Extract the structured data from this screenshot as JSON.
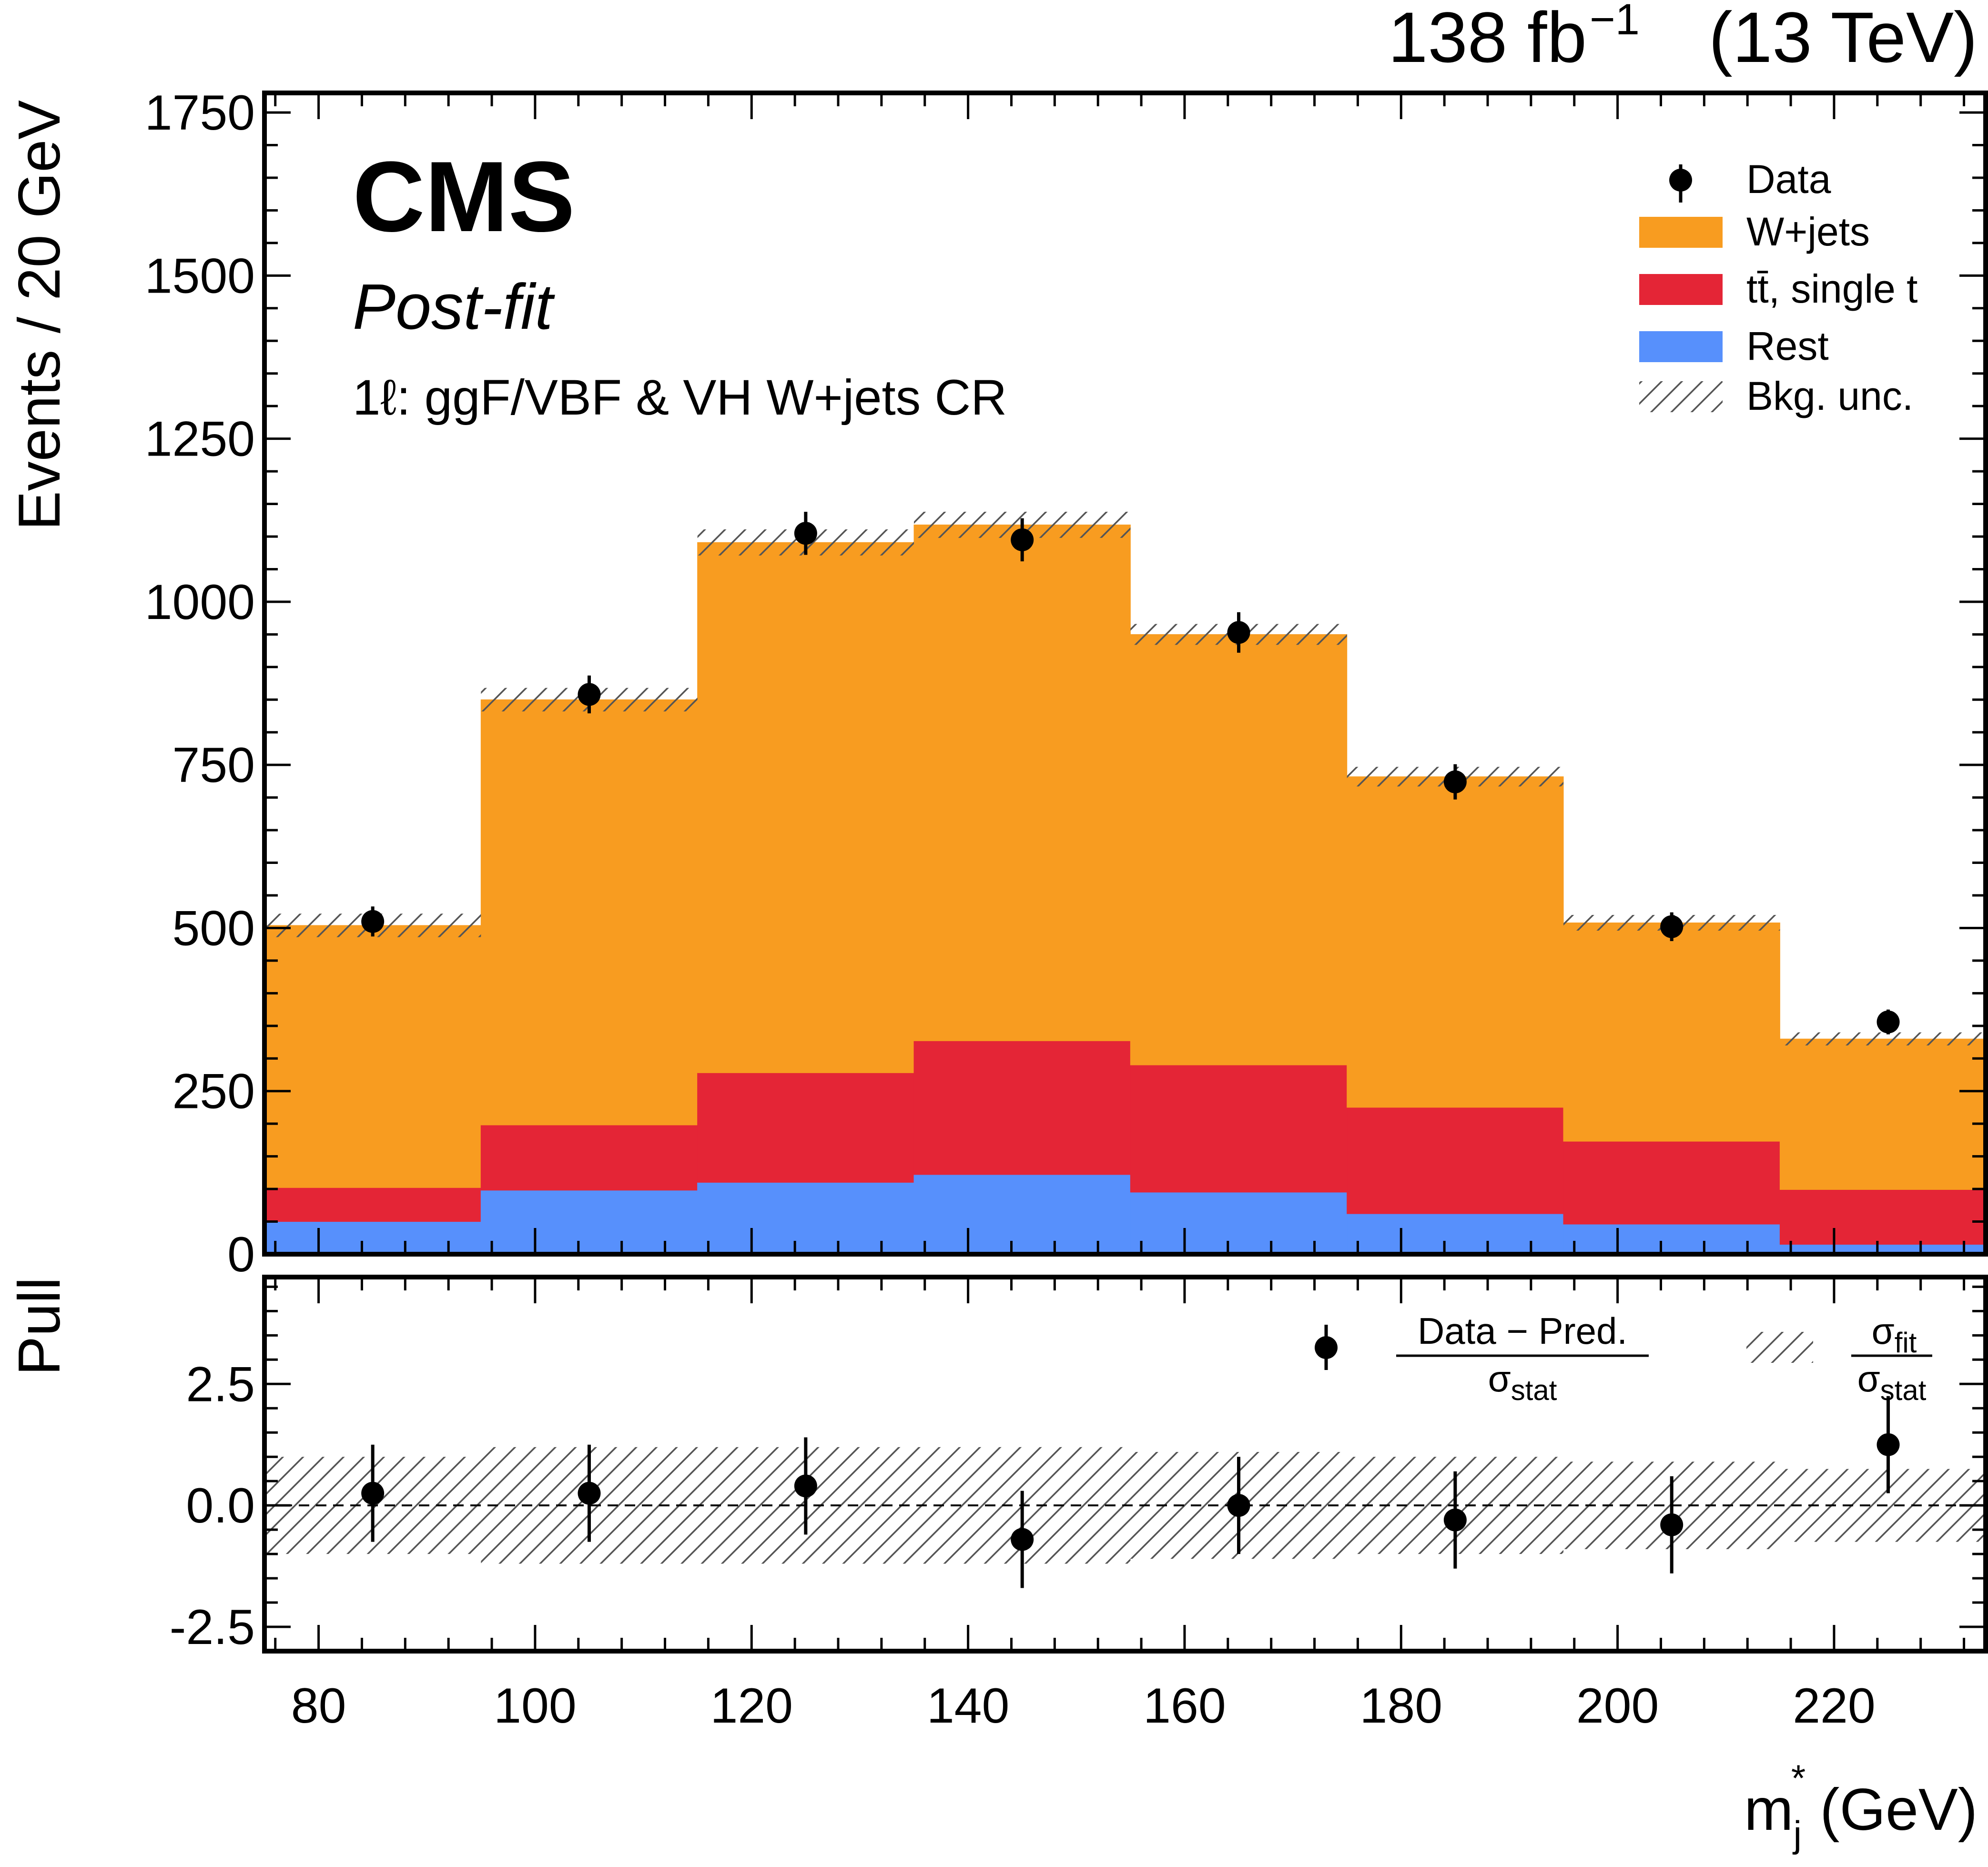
{
  "lumi_label": "138 fb",
  "lumi_exponent": "−1",
  "energy_label": "(13 TeV)",
  "experiment": "CMS",
  "fit_status": "Post-fit",
  "region_label": "1ℓ: ggF/VBF & VH W+jets CR",
  "legend": {
    "data": "Data",
    "wjets": "W+jets",
    "ttbar": "tt̄, single t",
    "rest": "Rest",
    "bkg_unc": "Bkg. unc."
  },
  "pull_legend": {
    "numerator": "Data − Pred.",
    "denominator": "σ",
    "denominator_sub": "stat",
    "band_numerator": "σ",
    "band_numerator_sub": "fit",
    "band_denominator": "σ",
    "band_denominator_sub": "stat"
  },
  "colors": {
    "wjets": "#f89c20",
    "ttbar": "#e42536",
    "rest": "#5790fc",
    "data": "#000000",
    "hatch": "#555555"
  },
  "chart_data": [
    {
      "type": "bar",
      "subtype": "stacked-histogram",
      "title": "",
      "xlabel": "m",
      "xlabel_sub": "j",
      "xlabel_sup": "*",
      "xlabel_unit": "(GeV)",
      "ylabel": "Events / 20 GeV",
      "xlim": [
        75,
        234
      ],
      "ylim": [
        0,
        1780
      ],
      "x_ticks": [
        80,
        100,
        120,
        140,
        160,
        180,
        200,
        220
      ],
      "y_ticks": [
        0,
        250,
        500,
        750,
        1000,
        1250,
        1500,
        1750
      ],
      "bin_edges": [
        75,
        95,
        115,
        135,
        155,
        175,
        195,
        215,
        234
      ],
      "series": [
        {
          "name": "Rest",
          "key": "rest",
          "values": [
            50,
            98,
            110,
            122,
            95,
            62,
            46,
            15
          ]
        },
        {
          "name": "tt̄, single t",
          "key": "ttbar",
          "values": [
            52,
            100,
            168,
            205,
            195,
            163,
            127,
            84
          ]
        },
        {
          "name": "W+jets",
          "key": "wjets",
          "values": [
            402,
            652,
            813,
            791,
            660,
            507,
            335,
            231
          ]
        }
      ],
      "bkg_unc": [
        18,
        18,
        20,
        20,
        16,
        15,
        12,
        10
      ],
      "data": {
        "name": "Data",
        "x": [
          85,
          105,
          125,
          145,
          165,
          185,
          205,
          225
        ],
        "values": [
          510,
          858,
          1105,
          1095,
          953,
          724,
          502,
          356
        ],
        "errors": [
          23,
          29,
          33,
          33,
          31,
          27,
          22,
          19
        ]
      }
    },
    {
      "type": "scatter",
      "subtype": "pull",
      "ylabel": "Pull",
      "xlim": [
        75,
        234
      ],
      "ylim": [
        -3.0,
        4.7
      ],
      "y_ticks": [
        -2.5,
        0.0,
        2.5
      ],
      "y_tick_labels": [
        "-2.5",
        "0.0",
        "2.5"
      ],
      "x": [
        85,
        105,
        125,
        145,
        165,
        185,
        205,
        225
      ],
      "values": [
        0.25,
        0.25,
        0.4,
        -0.7,
        0.0,
        -0.3,
        -0.4,
        1.25
      ],
      "errors": [
        1.0,
        1.0,
        1.0,
        1.0,
        1.0,
        1.0,
        1.0,
        1.0
      ],
      "band": [
        1.0,
        1.2,
        1.2,
        1.2,
        1.1,
        1.0,
        0.9,
        0.75
      ]
    }
  ]
}
